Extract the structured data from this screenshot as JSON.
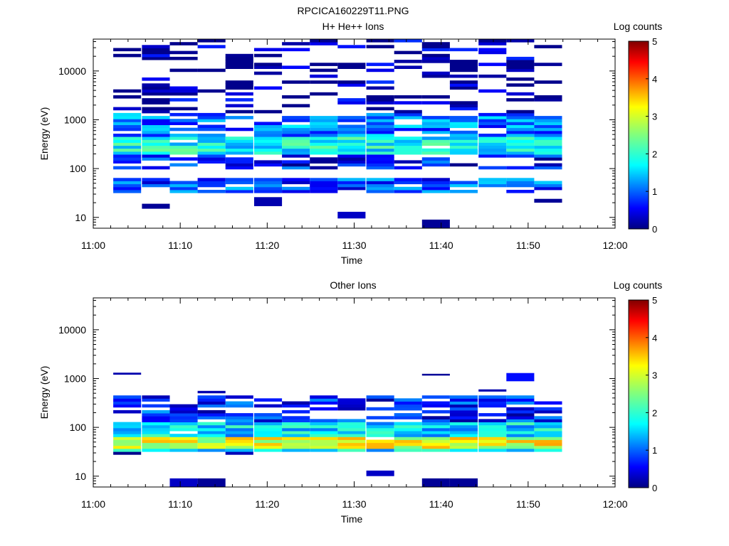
{
  "figure": {
    "title": "RPCICA160229T11.PNG"
  },
  "colorbar": {
    "label": "Log counts",
    "range": [
      0,
      5
    ],
    "ticks": [
      "0",
      "1",
      "2",
      "3",
      "4",
      "5"
    ],
    "colormap": "jet"
  },
  "chart_data": [
    {
      "type": "heatmap",
      "title": "H+ He++ Ions",
      "xlabel": "Time",
      "ylabel": "Energy (eV)",
      "x_ticks": [
        "11:00",
        "11:10",
        "11:20",
        "11:30",
        "11:40",
        "11:50",
        "12:00"
      ],
      "y_ticks": [
        "10",
        "100",
        "1000",
        "10000"
      ],
      "y_scale": "log",
      "x_range_minutes": [
        0,
        60
      ],
      "y_range_eV": [
        6,
        45000
      ],
      "time_bins_start_min": [
        2.3,
        5.6,
        8.8,
        12.0,
        15.2,
        18.5,
        21.7,
        24.9,
        28.1,
        31.4,
        34.6,
        37.8,
        41.0,
        44.3,
        47.5,
        50.7
      ],
      "time_bin_width_min": 3.2,
      "bands": [
        {
          "emin": 30,
          "emax": 60,
          "c": 0.9
        },
        {
          "emin": 100,
          "emax": 200,
          "c": 0.6
        },
        {
          "emin": 200,
          "emax": 450,
          "c": 1.8
        },
        {
          "emin": 450,
          "emax": 1400,
          "c": 1.1
        },
        {
          "emin": 1400,
          "emax": 45000,
          "c": 0.2
        }
      ],
      "isolated": [
        {
          "t_bin": 1,
          "emin": 15,
          "emax": 19,
          "c": 0.1
        },
        {
          "t_bin": 5,
          "emin": 17,
          "emax": 26,
          "c": 0.2
        },
        {
          "t_bin": 8,
          "emin": 9.5,
          "emax": 13,
          "c": 0.3
        },
        {
          "t_bin": 11,
          "emin": 6,
          "emax": 9,
          "c": 0.1
        },
        {
          "t_bin": 15,
          "emin": 20,
          "emax": 24,
          "c": 0.1
        }
      ]
    },
    {
      "type": "heatmap",
      "title": "Other Ions",
      "xlabel": "Time",
      "ylabel": "Energy (eV)",
      "x_ticks": [
        "11:00",
        "11:10",
        "11:20",
        "11:30",
        "11:40",
        "11:50",
        "12:00"
      ],
      "y_ticks": [
        "10",
        "100",
        "1000",
        "10000"
      ],
      "y_scale": "log",
      "x_range_minutes": [
        0,
        60
      ],
      "y_range_eV": [
        6,
        45000
      ],
      "time_bins_start_min": [
        2.3,
        5.6,
        8.8,
        12.0,
        15.2,
        18.5,
        21.7,
        24.9,
        28.1,
        31.4,
        34.6,
        37.8,
        41.0,
        44.3,
        47.5,
        50.7
      ],
      "time_bin_width_min": 3.2,
      "bands": [
        {
          "emin": 26,
          "emax": 30,
          "c": 0.3
        },
        {
          "emin": 30,
          "emax": 36,
          "c": 1.6
        },
        {
          "emin": 36,
          "emax": 60,
          "c": 3.0
        },
        {
          "emin": 60,
          "emax": 130,
          "c": 1.6
        },
        {
          "emin": 130,
          "emax": 450,
          "c": 0.7
        }
      ],
      "isolated": [
        {
          "t_bin": 0,
          "emin": 1200,
          "emax": 1320,
          "c": 0.2
        },
        {
          "t_bin": 2,
          "emin": 6,
          "emax": 9,
          "c": 0.3
        },
        {
          "t_bin": 3,
          "emin": 6,
          "emax": 9,
          "c": 0.1
        },
        {
          "t_bin": 3,
          "emin": 500,
          "emax": 560,
          "c": 0.2
        },
        {
          "t_bin": 9,
          "emin": 10,
          "emax": 13,
          "c": 0.3
        },
        {
          "t_bin": 11,
          "emin": 6,
          "emax": 9,
          "c": 0.1
        },
        {
          "t_bin": 12,
          "emin": 6,
          "emax": 9,
          "c": 0.1
        },
        {
          "t_bin": 11,
          "emin": 1150,
          "emax": 1250,
          "c": 0.1
        },
        {
          "t_bin": 14,
          "emin": 880,
          "emax": 1300,
          "c": 0.6
        },
        {
          "t_bin": 13,
          "emin": 540,
          "emax": 600,
          "c": 0.2
        }
      ]
    }
  ]
}
